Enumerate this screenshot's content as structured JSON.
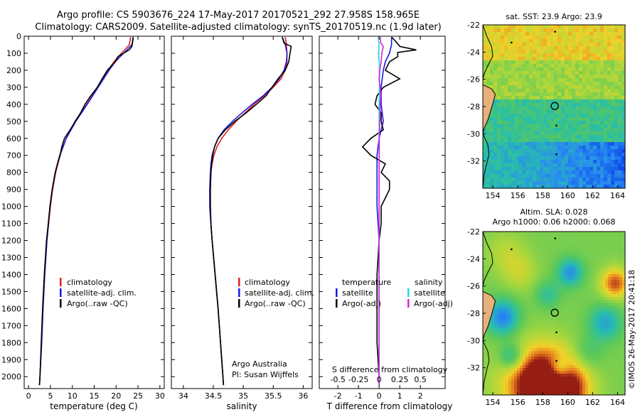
{
  "header": {
    "line1": "Argo profile: CS 5903676_224 17-May-2017 20170521_292 27.958S 158.965E",
    "line2": "Climatology: CARS2009. Satellite-adjusted climatology: synTS_20170519.nc (1.9d later)"
  },
  "colors": {
    "climatology": "#e02020",
    "satellite": "#1a1ae0",
    "argo": "#000000",
    "sat_salinity": "#22dddd",
    "argo_salinity": "#dd22dd"
  },
  "chart_data": [
    {
      "type": "line",
      "xlabel": "temperature (deg C)",
      "xlim": [
        -1,
        31
      ],
      "ylim": [
        2070,
        0
      ],
      "xticks": [
        "0",
        "5",
        "10",
        "15",
        "20",
        "25",
        "30"
      ],
      "xtick_values": [
        0,
        5,
        10,
        15,
        20,
        25,
        30
      ],
      "yticks": [
        "0",
        "100",
        "200",
        "300",
        "400",
        "500",
        "600",
        "700",
        "800",
        "900",
        "1000",
        "1100",
        "1200",
        "1300",
        "1400",
        "1500",
        "1600",
        "1700",
        "1800",
        "1900",
        "2000"
      ],
      "ytick_values": [
        0,
        100,
        200,
        300,
        400,
        500,
        600,
        700,
        800,
        900,
        1000,
        1100,
        1200,
        1300,
        1400,
        1500,
        1600,
        1700,
        1800,
        1900,
        2000
      ],
      "legend": [
        "climatology",
        "satellite-adj. clim.",
        "Argo(..raw -QC)"
      ],
      "series": [
        {
          "name": "climatology",
          "color": "#e02020",
          "depth": [
            5,
            50,
            100,
            150,
            200,
            300,
            400,
            500,
            600,
            700,
            800,
            900,
            1000,
            1200,
            1400,
            1600,
            1800,
            2000,
            2050
          ],
          "values": [
            23.3,
            23.0,
            21.2,
            19.5,
            18.2,
            15.8,
            13.3,
            10.6,
            8.6,
            7.2,
            6.2,
            5.5,
            5.0,
            4.2,
            3.7,
            3.3,
            3.0,
            2.6,
            2.5
          ]
        },
        {
          "name": "satellite-adj. clim.",
          "color": "#1a1ae0",
          "depth": [
            5,
            50,
            100,
            150,
            200,
            300,
            400,
            500,
            600,
            700,
            800,
            900,
            1000,
            1200,
            1400,
            1600,
            1800,
            2000,
            2050
          ],
          "values": [
            23.9,
            23.6,
            21.7,
            19.8,
            18.4,
            15.9,
            13.4,
            10.8,
            8.6,
            7.1,
            6.1,
            5.4,
            4.9,
            4.2,
            3.7,
            3.3,
            3.0,
            2.6,
            2.5
          ]
        },
        {
          "name": "Argo(..raw -QC)",
          "color": "#000000",
          "depth": [
            5,
            30,
            60,
            80,
            95,
            120,
            150,
            200,
            250,
            300,
            350,
            400,
            450,
            500,
            550,
            600,
            650,
            700,
            750,
            800,
            900,
            1000,
            1100,
            1200,
            1400,
            1600,
            1800,
            2000,
            2050
          ],
          "values": [
            23.9,
            23.8,
            23.6,
            23.0,
            22.0,
            20.4,
            19.8,
            18.0,
            16.8,
            15.7,
            14.2,
            12.9,
            11.9,
            10.7,
            9.5,
            8.2,
            7.6,
            7.2,
            6.6,
            6.1,
            5.4,
            4.9,
            4.5,
            4.1,
            3.6,
            3.2,
            2.9,
            2.6,
            2.5
          ]
        }
      ]
    },
    {
      "type": "line",
      "xlabel": "salinity",
      "xlim": [
        33.8,
        36.15
      ],
      "ylim": [
        2070,
        0
      ],
      "xticks": [
        "34",
        "34.5",
        "35",
        "35.5",
        "36"
      ],
      "xtick_values": [
        34,
        34.5,
        35,
        35.5,
        36
      ],
      "legend": [
        "climatology",
        "satellite-adj. clim.",
        "Argo(..raw -QC)"
      ],
      "annotation": [
        "Argo Australia",
        "PI: Susan Wijffels"
      ],
      "series": [
        {
          "name": "climatology",
          "color": "#e02020",
          "depth": [
            5,
            50,
            100,
            150,
            200,
            250,
            300,
            350,
            400,
            450,
            500,
            550,
            600,
            650,
            700,
            750,
            800,
            900,
            1000,
            1100,
            1200,
            1400,
            1600,
            1800,
            2000,
            2050
          ],
          "values": [
            35.7,
            35.72,
            35.73,
            35.73,
            35.7,
            35.63,
            35.5,
            35.35,
            35.18,
            35.03,
            34.88,
            34.75,
            34.64,
            34.56,
            34.51,
            34.48,
            34.46,
            34.45,
            34.45,
            34.46,
            34.48,
            34.53,
            34.58,
            34.62,
            34.66,
            34.67
          ]
        },
        {
          "name": "satellite-adj. clim.",
          "color": "#1a1ae0",
          "depth": [
            5,
            50,
            100,
            150,
            200,
            250,
            300,
            350,
            400,
            450,
            500,
            550,
            600,
            650,
            700,
            750,
            800,
            900,
            1000,
            1100,
            1200,
            1400,
            1600,
            1800,
            2000,
            2050
          ],
          "values": [
            35.65,
            35.7,
            35.73,
            35.72,
            35.68,
            35.6,
            35.48,
            35.33,
            35.15,
            34.98,
            34.82,
            34.68,
            34.58,
            34.52,
            34.48,
            34.46,
            34.45,
            34.44,
            34.44,
            34.46,
            34.48,
            34.53,
            34.58,
            34.62,
            34.66,
            34.67
          ]
        },
        {
          "name": "Argo(..raw -QC)",
          "color": "#000000",
          "depth": [
            5,
            40,
            60,
            100,
            150,
            200,
            250,
            300,
            350,
            400,
            450,
            500,
            550,
            600,
            650,
            700,
            750,
            800,
            900,
            1000,
            1100,
            1200,
            1400,
            1600,
            1800,
            2000,
            2050
          ],
          "values": [
            35.65,
            35.68,
            35.8,
            35.78,
            35.76,
            35.7,
            35.58,
            35.48,
            35.38,
            35.22,
            35.05,
            34.86,
            34.7,
            34.58,
            34.52,
            34.49,
            34.47,
            34.46,
            34.45,
            34.45,
            34.46,
            34.48,
            34.53,
            34.58,
            34.62,
            34.66,
            34.67
          ]
        }
      ]
    },
    {
      "type": "line",
      "xlabel": "T difference from climatology",
      "xlabel_top": "S difference from climatology",
      "xlim": [
        -2.9,
        3.2
      ],
      "ylim": [
        2070,
        0
      ],
      "xticks": [
        "-2",
        "-1",
        "0",
        "1",
        "2"
      ],
      "xtick_values": [
        -2,
        -1,
        0,
        1,
        2
      ],
      "xticks_top": [
        "-0.5",
        "-0.25",
        "0",
        "0.25",
        "0.5"
      ],
      "legend_titles": [
        "temperature",
        "salinity"
      ],
      "legend": [
        "satellite",
        "Argo(-adj)",
        "satellite",
        "Argo(-adj)"
      ],
      "series": [
        {
          "name": "satellite",
          "color": "#1a1ae0",
          "depth": [
            5,
            50,
            100,
            150,
            200,
            300,
            400,
            500,
            600,
            700,
            800,
            900,
            1000,
            1200,
            1400,
            1600,
            1800,
            2000,
            2050
          ],
          "values": [
            0.6,
            0.6,
            0.5,
            0.3,
            0.2,
            0.1,
            0.1,
            0.2,
            0.0,
            -0.1,
            -0.1,
            -0.1,
            -0.1,
            0.0,
            0.0,
            0.0,
            0.0,
            0.0,
            0.0
          ]
        },
        {
          "name": "Argo(-adj)",
          "color": "#000000",
          "depth": [
            5,
            30,
            60,
            80,
            95,
            120,
            150,
            200,
            250,
            300,
            350,
            400,
            450,
            500,
            550,
            600,
            650,
            700,
            750,
            800,
            850,
            900,
            950,
            1000,
            1100,
            1200,
            1400,
            1600,
            1800,
            2000,
            2050
          ],
          "values": [
            0.6,
            0.8,
            1.0,
            1.8,
            0.9,
            0.9,
            0.5,
            0.3,
            1.0,
            0.2,
            -0.1,
            -0.2,
            0.1,
            0.1,
            0.2,
            -0.4,
            -0.8,
            -0.4,
            0.3,
            0.1,
            0.5,
            0.5,
            0.3,
            0.1,
            0.1,
            0.0,
            -0.1,
            -0.1,
            -0.1,
            0.0,
            0.0
          ]
        },
        {
          "name": "satellite",
          "color": "#22dddd",
          "depth": [
            5,
            50,
            100,
            200,
            300,
            400,
            500,
            600,
            700,
            800,
            900,
            1000,
            1200,
            1400,
            1600,
            1800,
            2000,
            2050
          ],
          "values": [
            -0.05,
            0.0,
            -0.03,
            0.03,
            0.02,
            0.0,
            0.0,
            0.0,
            0.0,
            0.0,
            0.0,
            0.0,
            0.0,
            0.0,
            0.0,
            0.0,
            0.0,
            0.0
          ]
        },
        {
          "name": "Argo(-adj)",
          "color": "#dd22dd",
          "depth": [
            5,
            40,
            60,
            100,
            150,
            200,
            250,
            300,
            350,
            400,
            450,
            500,
            550,
            600,
            650,
            700,
            750,
            800,
            900,
            1000,
            1100,
            1200,
            1400,
            1600,
            1800,
            2000,
            2050
          ],
          "values": [
            0.05,
            0.08,
            0.2,
            0.13,
            0.1,
            0.03,
            0.0,
            0.05,
            0.07,
            0.05,
            0.05,
            0.03,
            0.02,
            0.01,
            0.01,
            0.01,
            0.0,
            0.0,
            0.0,
            0.0,
            0.0,
            0.0,
            0.0,
            0.0,
            0.0,
            0.0,
            0.0
          ]
        }
      ]
    },
    {
      "type": "heatmap",
      "title": "sat. SST: 23.9 Argo: 23.9",
      "xlim": [
        153.2,
        164.6
      ],
      "ylim": [
        -34,
        -22
      ],
      "xticks": [
        "154",
        "156",
        "158",
        "160",
        "162",
        "164"
      ],
      "xtick_values": [
        154,
        156,
        158,
        160,
        162,
        164
      ],
      "yticks": [
        "-22",
        "-24",
        "-26",
        "-28",
        "-30",
        "-32"
      ],
      "ytick_values": [
        -22,
        -24,
        -26,
        -28,
        -30,
        -32
      ],
      "marker": {
        "lon": 158.965,
        "lat": -27.958
      }
    },
    {
      "type": "heatmap",
      "title": "Altim. SLA: 0.028",
      "subtitle": "Argo h1000: 0.06 h2000: 0.068",
      "xlim": [
        153.2,
        164.6
      ],
      "ylim": [
        -34,
        -22
      ],
      "xticks": [
        "154",
        "156",
        "158",
        "160",
        "162",
        "164"
      ],
      "xtick_values": [
        154,
        156,
        158,
        160,
        162,
        164
      ],
      "yticks": [
        "-22",
        "-24",
        "-26",
        "-28",
        "-30",
        "-32"
      ],
      "ytick_values": [
        -22,
        -24,
        -26,
        -28,
        -30,
        -32
      ],
      "marker": {
        "lon": 158.965,
        "lat": -27.958
      }
    }
  ],
  "footer": {
    "credit": "©IMOS 26-May-2017 20:41:18"
  }
}
